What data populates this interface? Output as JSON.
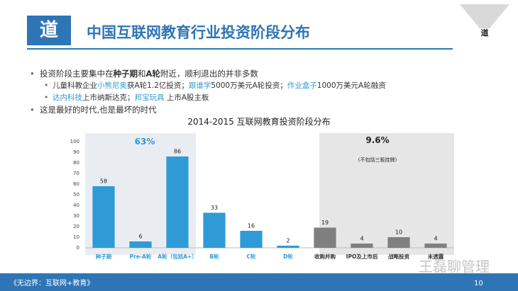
{
  "header": {
    "icon": "道",
    "title": "中国互联网教育行业投资阶段分布",
    "corner": "道"
  },
  "bullets": [
    {
      "level": 1,
      "segments": [
        {
          "text": "投资阶段主要集中在"
        },
        {
          "text": "种子期",
          "bold": true
        },
        {
          "text": "和"
        },
        {
          "text": "A轮",
          "bold": true
        },
        {
          "text": "附近，顺利退出的并非多数"
        }
      ]
    },
    {
      "level": 2,
      "segments": [
        {
          "text": "儿童科教企业"
        },
        {
          "text": "小熊尼奥",
          "color": "#2e9bd6"
        },
        {
          "text": "获A轮1.2亿投资；"
        },
        {
          "text": "跟谁学",
          "color": "#2e9bd6"
        },
        {
          "text": "5000万美元A轮投资；"
        },
        {
          "text": "作业盒子",
          "color": "#2e9bd6"
        },
        {
          "text": "1000万美元A轮融资"
        }
      ]
    },
    {
      "level": 2,
      "segments": [
        {
          "text": "达内科技",
          "color": "#2e9bd6"
        },
        {
          "text": "上市纳斯达克；"
        },
        {
          "text": "邦宝玩具",
          "color": "#2e9bd6"
        },
        {
          "text": " 上市A股主板"
        }
      ]
    },
    {
      "level": 1,
      "segments": [
        {
          "text": "这是最好的时代,也是最坏的时代"
        }
      ]
    }
  ],
  "chart_data": {
    "type": "bar",
    "title": "2014-2015  互联网教育投资阶段分布",
    "categories": [
      "种子期",
      "Pre-A轮",
      "A轮（包括A+）",
      "B轮",
      "C轮",
      "D轮",
      "收购并购",
      "IPO及上市后",
      "战略投资",
      "未透露"
    ],
    "values": [
      58,
      6,
      86,
      33,
      16,
      2,
      19,
      4,
      10,
      4
    ],
    "colors": [
      "#2e9bd6",
      "#2e9bd6",
      "#2e9bd6",
      "#2e9bd6",
      "#2e9bd6",
      "#2e9bd6",
      "#7f7f7f",
      "#7f7f7f",
      "#7f7f7f",
      "#7f7f7f"
    ],
    "ylim": [
      0,
      100
    ],
    "yticks": [
      0,
      10,
      20,
      30,
      40,
      50,
      60,
      70,
      80,
      90,
      100
    ],
    "grid": false,
    "annotations": [
      "63%",
      "9.6%",
      "(不包括三板挂牌)"
    ]
  },
  "footer": {
    "source": "《无边界：互联网+教育》",
    "page": "10",
    "watermark": "王磊聊管理"
  }
}
